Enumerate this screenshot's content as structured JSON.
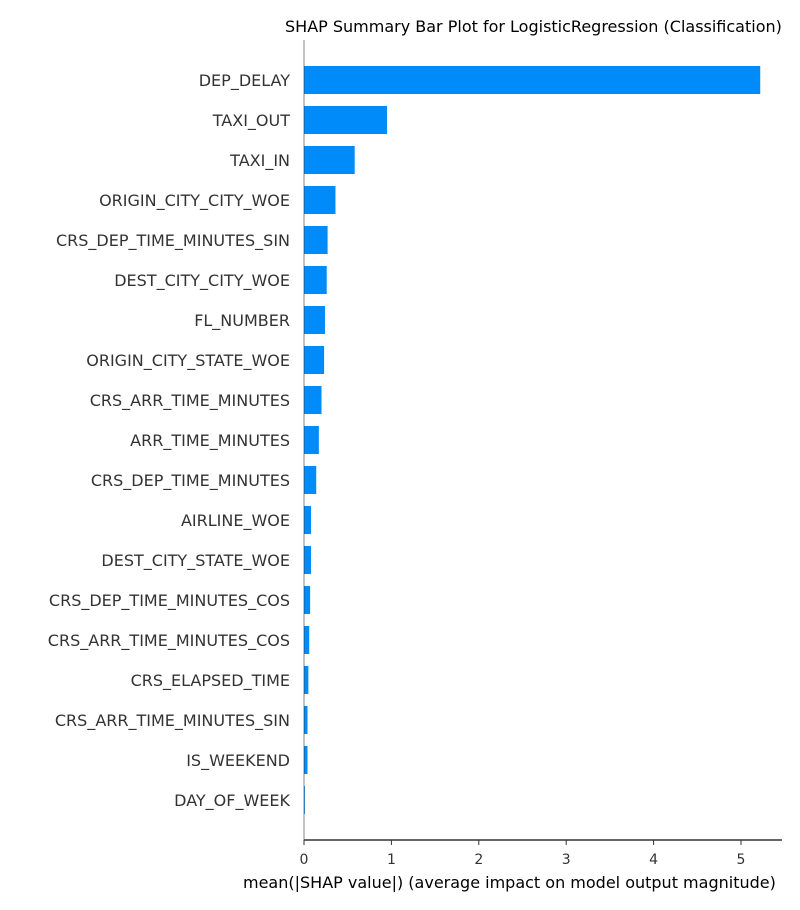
{
  "chart_data": {
    "type": "bar",
    "orientation": "horizontal",
    "title": "SHAP Summary Bar Plot for LogisticRegression (Classification)",
    "xlabel": "mean(|SHAP value|) (average impact on model output magnitude)",
    "ylabel": "",
    "xlim": [
      0,
      5.5
    ],
    "xticks": [
      0,
      1,
      2,
      3,
      4,
      5
    ],
    "grid": false,
    "colors": {
      "bar": "#008bfb",
      "axis": "#333333"
    },
    "categories": [
      "DEP_DELAY",
      "TAXI_OUT",
      "TAXI_IN",
      "ORIGIN_CITY_CITY_WOE",
      "CRS_DEP_TIME_MINUTES_SIN",
      "DEST_CITY_CITY_WOE",
      "FL_NUMBER",
      "ORIGIN_CITY_STATE_WOE",
      "CRS_ARR_TIME_MINUTES",
      "ARR_TIME_MINUTES",
      "CRS_DEP_TIME_MINUTES",
      "AIRLINE_WOE",
      "DEST_CITY_STATE_WOE",
      "CRS_DEP_TIME_MINUTES_COS",
      "CRS_ARR_TIME_MINUTES_COS",
      "CRS_ELAPSED_TIME",
      "CRS_ARR_TIME_MINUTES_SIN",
      "IS_WEEKEND",
      "DAY_OF_WEEK"
    ],
    "values": [
      5.22,
      0.95,
      0.58,
      0.36,
      0.27,
      0.26,
      0.24,
      0.23,
      0.2,
      0.17,
      0.14,
      0.08,
      0.08,
      0.07,
      0.06,
      0.05,
      0.04,
      0.04,
      0.01
    ]
  }
}
